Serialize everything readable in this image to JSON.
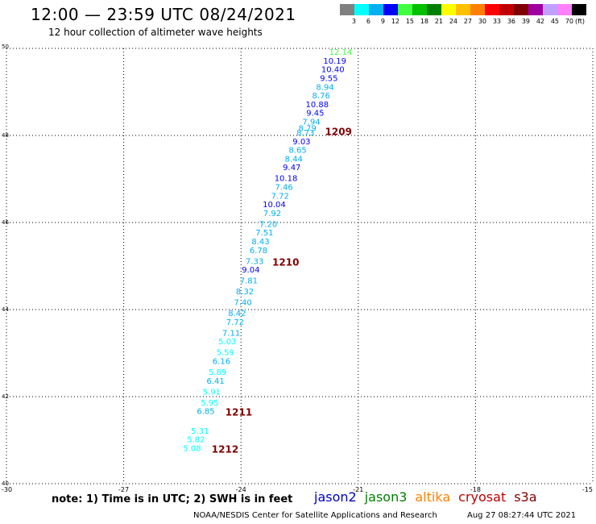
{
  "title": "12:00 — 23:59 UTC 08/24/2021",
  "subtitle": "12 hour collection of altimeter wave heights",
  "legend": {
    "unit": "(ft)",
    "colors": [
      "#808080",
      "#00ffff",
      "#00b0f0",
      "#0000ff",
      "#40ff40",
      "#00c000",
      "#008000",
      "#ffff00",
      "#ffc000",
      "#ff8000",
      "#ff0000",
      "#c00000",
      "#800000",
      "#a000a0",
      "#c0a0ff",
      "#ff80ff",
      "#000000"
    ],
    "labels": [
      "3",
      "6",
      "9",
      "12",
      "15",
      "18",
      "21",
      "24",
      "27",
      "30",
      "33",
      "36",
      "39",
      "42",
      "45",
      "70"
    ]
  },
  "axes": {
    "lat_labels": [
      "50",
      "48",
      "46",
      "44",
      "42",
      "40"
    ],
    "lat_values": [
      50,
      48,
      46,
      44,
      42,
      40
    ],
    "lon_labels": [
      "-30",
      "-27",
      "-24",
      "-21",
      "-18",
      "-15"
    ],
    "lon_values": [
      -30,
      -27,
      -24,
      -21,
      -18,
      -15
    ]
  },
  "points": [
    {
      "v": "12.14",
      "lat": 49.85,
      "lon": -21.45,
      "c": "#40ff40"
    },
    {
      "v": "10.19",
      "lat": 49.65,
      "lon": -21.6,
      "c": "#0000ff"
    },
    {
      "v": "10.40",
      "lat": 49.45,
      "lon": -21.65,
      "c": "#0000ff"
    },
    {
      "v": "9.55",
      "lat": 49.25,
      "lon": -21.75,
      "c": "#0000ff"
    },
    {
      "v": "8.94",
      "lat": 49.05,
      "lon": -21.85,
      "c": "#00b0f0"
    },
    {
      "v": "8.76",
      "lat": 48.85,
      "lon": -21.95,
      "c": "#00b0f0"
    },
    {
      "v": "10.88",
      "lat": 48.65,
      "lon": -22.05,
      "c": "#0000ff"
    },
    {
      "v": "9.45",
      "lat": 48.45,
      "lon": -22.1,
      "c": "#0000ff"
    },
    {
      "v": "7.94",
      "lat": 48.25,
      "lon": -22.2,
      "c": "#00b0f0"
    },
    {
      "v": "8.79",
      "lat": 48.1,
      "lon": -22.3,
      "c": "#00b0f0"
    },
    {
      "v": "8.73",
      "lat": 48.0,
      "lon": -22.35,
      "c": "#00b0f0"
    },
    {
      "v": "9.03",
      "lat": 47.8,
      "lon": -22.45,
      "c": "#0000ff"
    },
    {
      "v": "8.65",
      "lat": 47.6,
      "lon": -22.55,
      "c": "#00b0f0"
    },
    {
      "v": "8.44",
      "lat": 47.4,
      "lon": -22.65,
      "c": "#00b0f0"
    },
    {
      "v": "9.47",
      "lat": 47.2,
      "lon": -22.7,
      "c": "#0000ff"
    },
    {
      "v": "10.18",
      "lat": 46.95,
      "lon": -22.85,
      "c": "#0000ff"
    },
    {
      "v": "7.46",
      "lat": 46.75,
      "lon": -22.9,
      "c": "#00b0f0"
    },
    {
      "v": "7.72",
      "lat": 46.55,
      "lon": -23.0,
      "c": "#00b0f0"
    },
    {
      "v": "10.04",
      "lat": 46.35,
      "lon": -23.15,
      "c": "#0000ff"
    },
    {
      "v": "7.92",
      "lat": 46.15,
      "lon": -23.2,
      "c": "#00b0f0"
    },
    {
      "v": "7.20",
      "lat": 45.9,
      "lon": -23.3,
      "c": "#00b0f0"
    },
    {
      "v": "7.51",
      "lat": 45.7,
      "lon": -23.4,
      "c": "#00b0f0"
    },
    {
      "v": "8.43",
      "lat": 45.5,
      "lon": -23.5,
      "c": "#00b0f0"
    },
    {
      "v": "6.78",
      "lat": 45.3,
      "lon": -23.55,
      "c": "#00b0f0"
    },
    {
      "v": "7.33",
      "lat": 45.05,
      "lon": -23.65,
      "c": "#00b0f0"
    },
    {
      "v": "9.04",
      "lat": 44.85,
      "lon": -23.75,
      "c": "#0000ff"
    },
    {
      "v": "7.81",
      "lat": 44.6,
      "lon": -23.8,
      "c": "#00b0f0"
    },
    {
      "v": "8.32",
      "lat": 44.35,
      "lon": -23.9,
      "c": "#00b0f0"
    },
    {
      "v": "7.40",
      "lat": 44.1,
      "lon": -23.95,
      "c": "#00b0f0"
    },
    {
      "v": "8.42",
      "lat": 43.85,
      "lon": -24.1,
      "c": "#00b0f0"
    },
    {
      "v": "7.72",
      "lat": 43.65,
      "lon": -24.15,
      "c": "#00b0f0"
    },
    {
      "v": "7.11",
      "lat": 43.4,
      "lon": -24.25,
      "c": "#00b0f0"
    },
    {
      "v": "5.03",
      "lat": 43.2,
      "lon": -24.35,
      "c": "#00ffff"
    },
    {
      "v": "5.59",
      "lat": 42.95,
      "lon": -24.4,
      "c": "#00ffff"
    },
    {
      "v": "6.16",
      "lat": 42.75,
      "lon": -24.5,
      "c": "#00b0f0"
    },
    {
      "v": "5.89",
      "lat": 42.5,
      "lon": -24.6,
      "c": "#00ffff"
    },
    {
      "v": "6.41",
      "lat": 42.3,
      "lon": -24.65,
      "c": "#00b0f0"
    },
    {
      "v": "5.91",
      "lat": 42.05,
      "lon": -24.75,
      "c": "#00ffff"
    },
    {
      "v": "5.95",
      "lat": 41.8,
      "lon": -24.8,
      "c": "#00ffff"
    },
    {
      "v": "6.85",
      "lat": 41.6,
      "lon": -24.9,
      "c": "#00b0f0"
    },
    {
      "v": "5.31",
      "lat": 41.15,
      "lon": -25.05,
      "c": "#00ffff"
    },
    {
      "v": "5.82",
      "lat": 40.95,
      "lon": -25.15,
      "c": "#00ffff"
    },
    {
      "v": "5.08",
      "lat": 40.75,
      "lon": -25.25,
      "c": "#00ffff"
    }
  ],
  "passes": [
    {
      "label": "1209",
      "lat": 48.05,
      "lon": -21.85
    },
    {
      "label": "1210",
      "lat": 45.05,
      "lon": -23.2
    },
    {
      "label": "1211",
      "lat": 41.6,
      "lon": -24.4
    },
    {
      "label": "1212",
      "lat": 40.75,
      "lon": -24.75
    }
  ],
  "note": "note: 1) Time is in UTC; 2) SWH is in feet",
  "satellites": [
    {
      "name": "jason2",
      "color": "#0000c0"
    },
    {
      "name": "jason3",
      "color": "#008000"
    },
    {
      "name": "altika",
      "color": "#ff8000"
    },
    {
      "name": "cryosat",
      "color": "#c00000"
    },
    {
      "name": "s3a",
      "color": "#800000"
    }
  ],
  "footer": {
    "center": "NOAA/NESDIS Center for Satellite Applications and Research",
    "timestamp": "Aug 27 08:27:44 UTC 2021"
  }
}
